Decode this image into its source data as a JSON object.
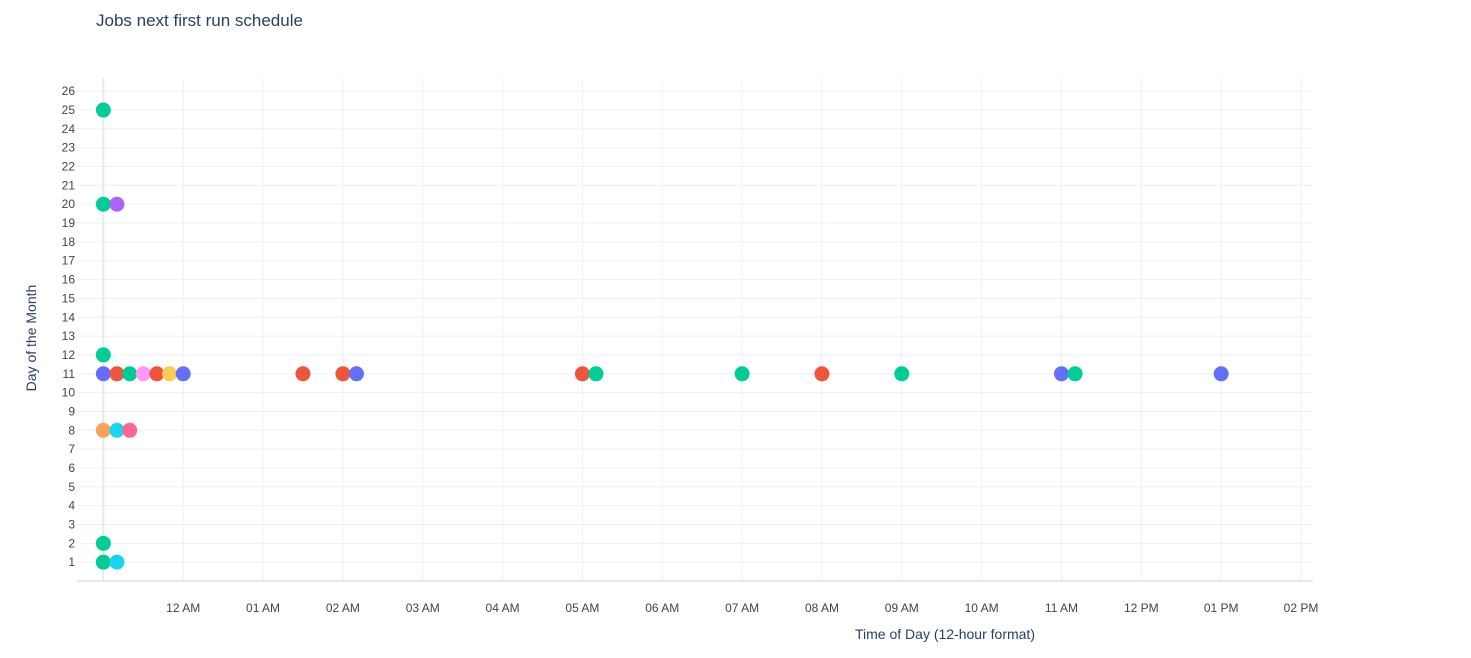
{
  "chart_data": {
    "type": "scatter",
    "title": "Jobs next first run schedule",
    "xlabel": "Time of Day (12-hour format)",
    "ylabel": "Day of the Month",
    "x_ticks": [
      "12 AM",
      "01 AM",
      "02 AM",
      "03 AM",
      "04 AM",
      "05 AM",
      "06 AM",
      "07 AM",
      "08 AM",
      "09 AM",
      "10 AM",
      "11 AM",
      "12 PM",
      "01 PM",
      "02 PM"
    ],
    "xlim_hours": [
      -1.33,
      14.15
    ],
    "ylim": [
      0,
      26.7
    ],
    "y_ticks": [
      1,
      2,
      3,
      4,
      5,
      6,
      7,
      8,
      9,
      10,
      11,
      12,
      13,
      14,
      15,
      16,
      17,
      18,
      19,
      20,
      21,
      22,
      23,
      24,
      25,
      26
    ],
    "grid": true,
    "legend": "none",
    "points": [
      {
        "time_hours": -1.0,
        "day": 25,
        "color": "#00cc96"
      },
      {
        "time_hours": -1.0,
        "day": 20,
        "color": "#00cc96"
      },
      {
        "time_hours": -0.83,
        "day": 20,
        "color": "#ab63fa"
      },
      {
        "time_hours": -1.0,
        "day": 12,
        "color": "#00cc96"
      },
      {
        "time_hours": -1.0,
        "day": 11,
        "color": "#636efa"
      },
      {
        "time_hours": -0.83,
        "day": 11,
        "color": "#ef553b"
      },
      {
        "time_hours": -0.67,
        "day": 11,
        "color": "#00cc96"
      },
      {
        "time_hours": -0.5,
        "day": 11,
        "color": "#ff97ff"
      },
      {
        "time_hours": -0.33,
        "day": 11,
        "color": "#ef553b"
      },
      {
        "time_hours": -0.17,
        "day": 11,
        "color": "#fecb52"
      },
      {
        "time_hours": 0.0,
        "day": 11,
        "color": "#636efa"
      },
      {
        "time_hours": 1.5,
        "day": 11,
        "color": "#ef553b"
      },
      {
        "time_hours": 2.0,
        "day": 11,
        "color": "#ef553b"
      },
      {
        "time_hours": 2.17,
        "day": 11,
        "color": "#636efa"
      },
      {
        "time_hours": 5.0,
        "day": 11,
        "color": "#ef553b"
      },
      {
        "time_hours": 5.17,
        "day": 11,
        "color": "#00cc96"
      },
      {
        "time_hours": 7.0,
        "day": 11,
        "color": "#00cc96"
      },
      {
        "time_hours": 8.0,
        "day": 11,
        "color": "#ef553b"
      },
      {
        "time_hours": 9.0,
        "day": 11,
        "color": "#00cc96"
      },
      {
        "time_hours": 11.0,
        "day": 11,
        "color": "#636efa"
      },
      {
        "time_hours": 11.17,
        "day": 11,
        "color": "#00cc96"
      },
      {
        "time_hours": 13.0,
        "day": 11,
        "color": "#636efa"
      },
      {
        "time_hours": -1.0,
        "day": 8,
        "color": "#ffa15a"
      },
      {
        "time_hours": -0.83,
        "day": 8,
        "color": "#19d3f3"
      },
      {
        "time_hours": -0.67,
        "day": 8,
        "color": "#ff6692"
      },
      {
        "time_hours": -1.0,
        "day": 2,
        "color": "#00cc96"
      },
      {
        "time_hours": -1.0,
        "day": 1,
        "color": "#00cc96"
      },
      {
        "time_hours": -0.83,
        "day": 1,
        "color": "#19d3f3"
      }
    ]
  }
}
